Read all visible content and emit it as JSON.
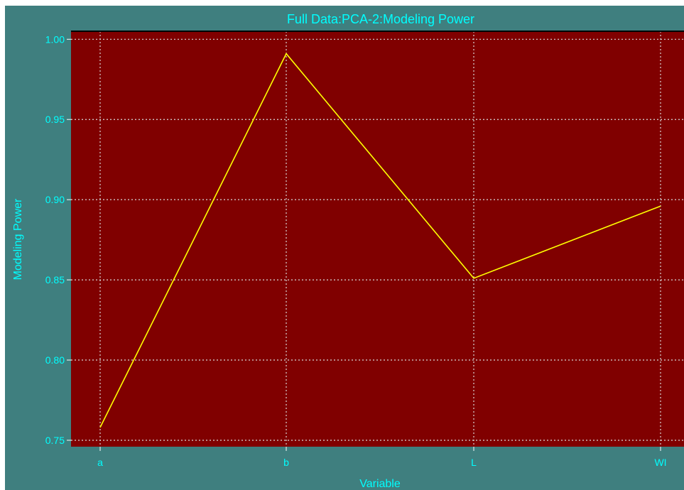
{
  "chart_data": {
    "type": "line",
    "title": "Full Data:PCA-2:Modeling Power",
    "xlabel": "Variable",
    "ylabel": "Modeling Power",
    "categories": [
      "a",
      "b",
      "L",
      "WI"
    ],
    "series": [
      {
        "values": [
          0.758,
          0.991,
          0.851,
          0.896
        ]
      }
    ],
    "ylim": [
      0.746,
      1.005
    ],
    "yticks": [
      0.75,
      0.8,
      0.85,
      0.9,
      0.95,
      1.0
    ],
    "ytick_labels": [
      "0.75",
      "0.80",
      "0.85",
      "0.90",
      "0.95",
      "1.00"
    ],
    "grid": true,
    "colors": {
      "panel_background": "#3f7f7f",
      "plot_background": "#800000",
      "line": "#ffff00",
      "text": "#00ffff",
      "grid": "#d9d9d9"
    }
  }
}
